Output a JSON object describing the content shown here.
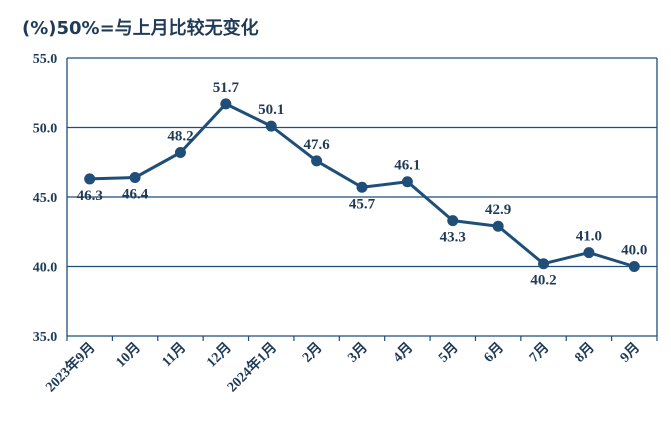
{
  "chart_data": {
    "type": "line",
    "title": "(%)50%=与上月比较无变化",
    "categories": [
      "2023年9月",
      "10月",
      "11月",
      "12月",
      "2024年1月",
      "2月",
      "3月",
      "4月",
      "5月",
      "6月",
      "7月",
      "8月",
      "9月"
    ],
    "values": [
      46.3,
      46.4,
      48.2,
      51.7,
      50.1,
      47.6,
      45.7,
      46.1,
      43.3,
      42.9,
      40.2,
      41.0,
      40.0
    ],
    "value_labels": [
      "46.3",
      "46.4",
      "48.2",
      "51.7",
      "50.1",
      "47.6",
      "45.7",
      "46.1",
      "43.3",
      "42.9",
      "40.2",
      "41.0",
      "40.0"
    ],
    "label_positions": [
      "below",
      "below",
      "above",
      "above",
      "above",
      "above",
      "below",
      "above",
      "below",
      "above",
      "below",
      "above",
      "above"
    ],
    "ylim": [
      35.0,
      55.0
    ],
    "yticks": [
      "35.0",
      "40.0",
      "45.0",
      "50.0",
      "55.0"
    ],
    "grid": true,
    "colors": {
      "line": "#1f4e79",
      "text": "#1f3b57",
      "grid": "#1f4e79"
    }
  }
}
